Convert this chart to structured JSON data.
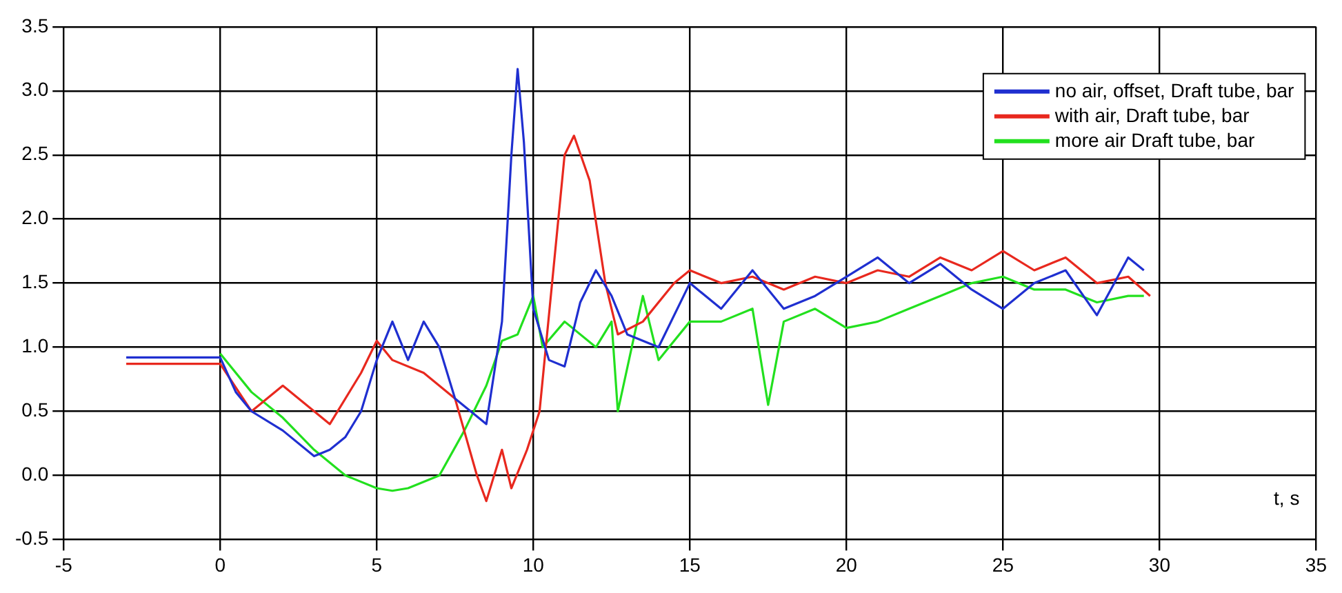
{
  "chart_data": {
    "type": "line",
    "xlabel": "t, s",
    "xlim": [
      -5,
      35
    ],
    "xticks": [
      -5,
      0,
      5,
      10,
      15,
      20,
      25,
      30,
      35
    ],
    "ylim": [
      -0.5,
      3.5
    ],
    "yticks": [
      {
        "value": -0.5,
        "label": "-0.5"
      },
      {
        "value": 0,
        "label": "0.0"
      },
      {
        "value": 0.5,
        "label": "0.5"
      },
      {
        "value": 1,
        "label": "1.0"
      },
      {
        "value": 1.5,
        "label": "1.5"
      },
      {
        "value": 2,
        "label": "2.0"
      },
      {
        "value": 2.5,
        "label": "2.5"
      },
      {
        "value": 3,
        "label": "3.0"
      },
      {
        "value": 3.5,
        "label": "3.5"
      }
    ],
    "grid": true,
    "legend": "top right",
    "marker": "none",
    "line_style": "solid",
    "series": [
      {
        "name": "no air, offset, Draft tube, bar",
        "color": "#1f2fd0",
        "x": [
          -3,
          -2,
          -1,
          0,
          0.5,
          1,
          2,
          3,
          3.5,
          4,
          4.5,
          5,
          5.5,
          6,
          6.5,
          7,
          7.5,
          8,
          8.5,
          9,
          9.3,
          9.5,
          9.7,
          10,
          10.5,
          11,
          11.5,
          12,
          12.5,
          13,
          14,
          15,
          16,
          17,
          18,
          19,
          20,
          21,
          22,
          23,
          24,
          25,
          26,
          27,
          28,
          29,
          29.5
        ],
        "values": [
          0.92,
          0.92,
          0.92,
          0.92,
          0.65,
          0.5,
          0.35,
          0.15,
          0.2,
          0.3,
          0.5,
          0.9,
          1.2,
          0.9,
          1.2,
          1.0,
          0.6,
          0.5,
          0.4,
          1.2,
          2.5,
          3.17,
          2.6,
          1.3,
          0.9,
          0.85,
          1.35,
          1.6,
          1.4,
          1.1,
          1.0,
          1.5,
          1.3,
          1.6,
          1.3,
          1.4,
          1.55,
          1.7,
          1.5,
          1.65,
          1.45,
          1.3,
          1.5,
          1.6,
          1.25,
          1.7,
          1.6
        ]
      },
      {
        "name": "with air, Draft tube, bar",
        "color": "#e8281e",
        "x": [
          -3,
          -2,
          -1,
          0,
          1,
          2,
          3.5,
          4.5,
          5,
          5.5,
          6.5,
          7.5,
          8.2,
          8.5,
          9,
          9.3,
          9.8,
          10.2,
          10.6,
          11,
          11.3,
          11.8,
          12.3,
          12.7,
          13.5,
          14.5,
          15,
          16,
          17,
          18,
          19,
          20,
          21,
          22,
          23,
          24,
          25,
          26,
          27,
          28,
          29,
          29.7
        ],
        "values": [
          0.87,
          0.87,
          0.87,
          0.87,
          0.5,
          0.7,
          0.4,
          0.8,
          1.05,
          0.9,
          0.8,
          0.6,
          0.0,
          -0.2,
          0.2,
          -0.1,
          0.2,
          0.5,
          1.5,
          2.5,
          2.65,
          2.3,
          1.5,
          1.1,
          1.2,
          1.5,
          1.6,
          1.5,
          1.55,
          1.45,
          1.55,
          1.5,
          1.6,
          1.55,
          1.7,
          1.6,
          1.75,
          1.6,
          1.7,
          1.5,
          1.55,
          1.4
        ]
      },
      {
        "name": "more air Draft tube, bar",
        "color": "#22e01e",
        "x": [
          0,
          1,
          2,
          3,
          4,
          5,
          5.5,
          6,
          7,
          7.8,
          8.5,
          9,
          9.5,
          10,
          10.3,
          11,
          12,
          12.5,
          12.7,
          13.5,
          14,
          15,
          16,
          17,
          17.5,
          18,
          19,
          20,
          21,
          22,
          23,
          24,
          25,
          26,
          27,
          28,
          29,
          29.5
        ],
        "values": [
          0.95,
          0.65,
          0.45,
          0.2,
          0.0,
          -0.1,
          -0.12,
          -0.1,
          0.0,
          0.35,
          0.7,
          1.05,
          1.1,
          1.4,
          1.0,
          1.2,
          1.0,
          1.2,
          0.5,
          1.4,
          0.9,
          1.2,
          1.2,
          1.3,
          0.55,
          1.2,
          1.3,
          1.15,
          1.2,
          1.3,
          1.4,
          1.5,
          1.55,
          1.45,
          1.45,
          1.35,
          1.4,
          1.4
        ]
      }
    ]
  }
}
